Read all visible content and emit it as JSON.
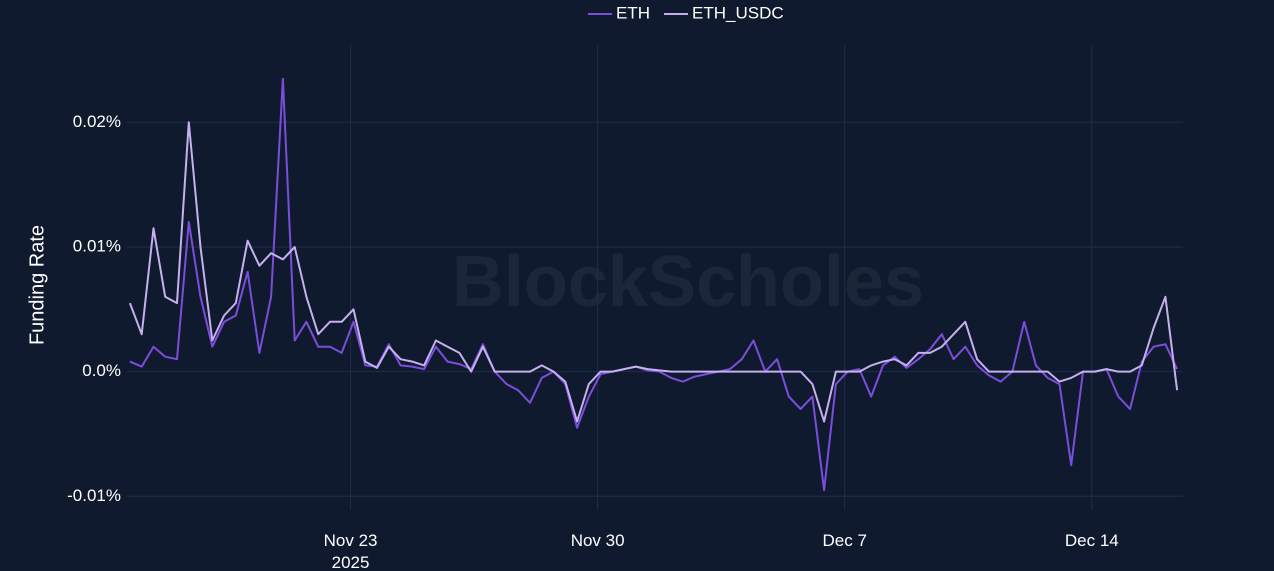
{
  "chart_data": {
    "type": "line",
    "y_label": "Funding Rate",
    "watermark": "BlockScholes",
    "x": [
      "2025-11-16T18:00",
      "2025-11-17T02:00",
      "2025-11-17T10:00",
      "2025-11-17T18:00",
      "2025-11-18T02:00",
      "2025-11-18T10:00",
      "2025-11-18T18:00",
      "2025-11-19T02:00",
      "2025-11-19T10:00",
      "2025-11-19T18:00",
      "2025-11-20T02:00",
      "2025-11-20T10:00",
      "2025-11-20T18:00",
      "2025-11-21T02:00",
      "2025-11-21T10:00",
      "2025-11-21T18:00",
      "2025-11-22T02:00",
      "2025-11-22T10:00",
      "2025-11-22T18:00",
      "2025-11-23T02:00",
      "2025-11-23T10:00",
      "2025-11-23T18:00",
      "2025-11-24T02:00",
      "2025-11-24T10:00",
      "2025-11-24T18:00",
      "2025-11-25T02:00",
      "2025-11-25T10:00",
      "2025-11-25T18:00",
      "2025-11-26T02:00",
      "2025-11-26T10:00",
      "2025-11-26T18:00",
      "2025-11-27T02:00",
      "2025-11-27T10:00",
      "2025-11-27T18:00",
      "2025-11-28T02:00",
      "2025-11-28T10:00",
      "2025-11-28T18:00",
      "2025-11-29T02:00",
      "2025-11-29T10:00",
      "2025-11-29T18:00",
      "2025-11-30T02:00",
      "2025-11-30T10:00",
      "2025-11-30T18:00",
      "2025-12-01T02:00",
      "2025-12-01T10:00",
      "2025-12-01T18:00",
      "2025-12-02T02:00",
      "2025-12-02T10:00",
      "2025-12-02T18:00",
      "2025-12-03T02:00",
      "2025-12-03T10:00",
      "2025-12-03T18:00",
      "2025-12-04T02:00",
      "2025-12-04T10:00",
      "2025-12-04T18:00",
      "2025-12-05T02:00",
      "2025-12-05T10:00",
      "2025-12-05T18:00",
      "2025-12-06T02:00",
      "2025-12-06T10:00",
      "2025-12-06T18:00",
      "2025-12-07T02:00",
      "2025-12-07T10:00",
      "2025-12-07T18:00",
      "2025-12-08T02:00",
      "2025-12-08T10:00",
      "2025-12-08T18:00",
      "2025-12-09T02:00",
      "2025-12-09T10:00",
      "2025-12-09T18:00",
      "2025-12-10T02:00",
      "2025-12-10T10:00",
      "2025-12-10T18:00",
      "2025-12-11T02:00",
      "2025-12-11T10:00",
      "2025-12-11T18:00",
      "2025-12-12T02:00",
      "2025-12-12T10:00",
      "2025-12-12T18:00",
      "2025-12-13T02:00",
      "2025-12-13T10:00",
      "2025-12-13T18:00",
      "2025-12-14T02:00",
      "2025-12-14T10:00",
      "2025-12-14T18:00",
      "2025-12-15T02:00",
      "2025-12-15T10:00",
      "2025-12-15T18:00",
      "2025-12-16T02:00",
      "2025-12-16T10:00"
    ],
    "series": [
      {
        "name": "ETH",
        "color": "#7c4ddb",
        "values": [
          0.0008,
          0.0004,
          0.002,
          0.0012,
          0.001,
          0.012,
          0.006,
          0.002,
          0.004,
          0.0045,
          0.008,
          0.0015,
          0.006,
          0.0235,
          0.0025,
          0.004,
          0.002,
          0.002,
          0.0015,
          0.004,
          0.0005,
          0.0004,
          0.0022,
          0.0005,
          0.0004,
          0.0002,
          0.002,
          0.0008,
          0.0006,
          0.0002,
          0.0022,
          0,
          -0.001,
          -0.0015,
          -0.0025,
          -0.0005,
          0,
          -0.001,
          -0.0045,
          -0.002,
          -0.0002,
          0,
          0.0002,
          0.0004,
          0.0001,
          0,
          -0.0005,
          -0.0008,
          -0.0004,
          -0.0002,
          0,
          0.0002,
          0.001,
          0.0025,
          0,
          0.001,
          -0.002,
          -0.003,
          -0.002,
          -0.0095,
          -0.001,
          0,
          0.0002,
          -0.002,
          0.0005,
          0.0012,
          0.0003,
          0.001,
          0.0018,
          0.003,
          0.001,
          0.002,
          0.0005,
          -0.0003,
          -0.0008,
          0,
          0.004,
          0.0005,
          -0.0005,
          -0.001,
          -0.0075,
          0,
          0,
          0.0002,
          -0.002,
          -0.003,
          0.0008,
          0.002,
          0.0022,
          0.0002
        ]
      },
      {
        "name": "ETH_USDC",
        "color": "#c7b0ee",
        "values": [
          0.0055,
          0.003,
          0.0115,
          0.006,
          0.0055,
          0.02,
          0.01,
          0.0025,
          0.0045,
          0.0055,
          0.0105,
          0.0085,
          0.0095,
          0.009,
          0.01,
          0.006,
          0.003,
          0.004,
          0.004,
          0.005,
          0.0008,
          0.0003,
          0.002,
          0.001,
          0.0008,
          0.0005,
          0.0025,
          0.002,
          0.0015,
          0,
          0.002,
          0,
          0,
          0,
          0,
          0.0005,
          0,
          -0.0008,
          -0.004,
          -0.001,
          0,
          0,
          0.0002,
          0.0004,
          0.0002,
          0.0001,
          0,
          0,
          0,
          0,
          0,
          0,
          0,
          0,
          0,
          0,
          0,
          0,
          -0.001,
          -0.004,
          0,
          0,
          0,
          0.0005,
          0.0008,
          0.001,
          0.0005,
          0.0015,
          0.0015,
          0.002,
          0.003,
          0.004,
          0.001,
          0,
          0,
          0,
          0,
          0,
          0,
          -0.0008,
          -0.0005,
          0,
          0,
          0.0002,
          0,
          0,
          0.0005,
          0.0035,
          0.006,
          -0.0015
        ]
      }
    ],
    "xlim": [
      "2025-11-16T16:00",
      "2025-12-16T14:00"
    ],
    "xticks": [
      {
        "value": "2025-11-23T00:00",
        "label": "Nov 23",
        "sublabel": "2025"
      },
      {
        "value": "2025-11-30T00:00",
        "label": "Nov 30"
      },
      {
        "value": "2025-12-07T00:00",
        "label": "Dec 7"
      },
      {
        "value": "2025-12-14T00:00",
        "label": "Dec 14"
      }
    ],
    "ylim": [
      -0.0111,
      0.0262
    ],
    "yticks": [
      {
        "value": -0.01,
        "label": "-0.01%"
      },
      {
        "value": 0,
        "label": "0.0%"
      },
      {
        "value": 0.01,
        "label": "0.01%"
      },
      {
        "value": 0.02,
        "label": "0.02%"
      }
    ],
    "grid": true,
    "legend": "top"
  }
}
